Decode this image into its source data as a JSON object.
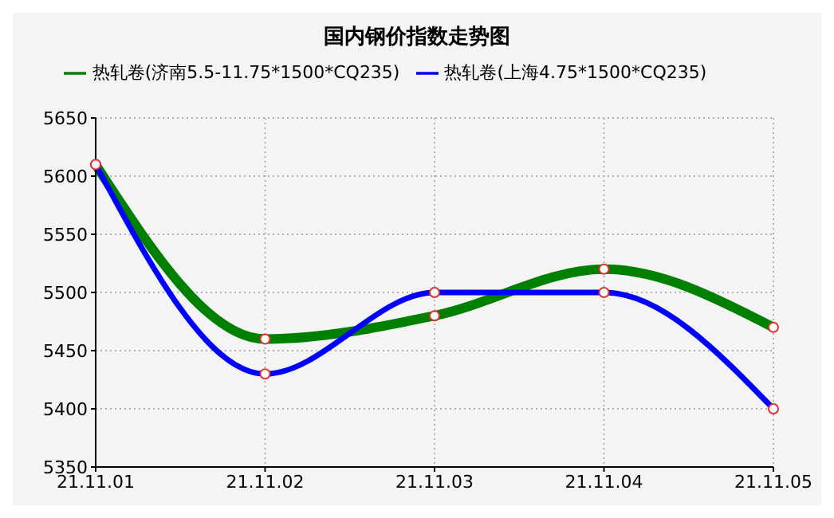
{
  "chart_data": {
    "type": "line",
    "title": "国内钢价指数走势图",
    "categories": [
      "21.11.01",
      "21.11.02",
      "21.11.03",
      "21.11.04",
      "21.11.05"
    ],
    "series": [
      {
        "name": "热轧卷(济南5.5-11.75*1500*CQ235)",
        "color": "#008000",
        "values": [
          5610,
          5460,
          5480,
          5520,
          5470
        ]
      },
      {
        "name": "热轧卷(上海4.75*1500*CQ235)",
        "color": "#0000ff",
        "values": [
          5610,
          5430,
          5500,
          5500,
          5400
        ]
      }
    ],
    "ylim": [
      5350,
      5650
    ],
    "yticks": [
      5350,
      5400,
      5450,
      5500,
      5550,
      5600,
      5650
    ],
    "grid": true,
    "legend": "top",
    "marker": "circle"
  }
}
